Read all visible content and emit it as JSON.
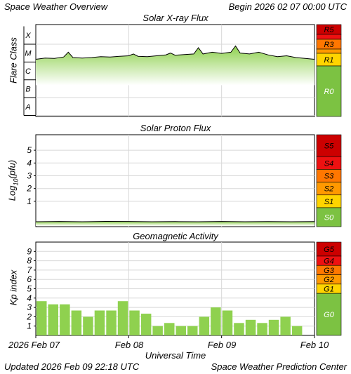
{
  "header": {
    "title": "Space Weather Overview",
    "begin": "Begin 2026 02 07 00:00 UTC"
  },
  "footer": {
    "updated": "Updated 2026 Feb 09 22:18 UTC",
    "center": "Space Weather Prediction Center",
    "xaxis_title": "Universal Time"
  },
  "x_axis": {
    "ticks": [
      "2026 Feb 07",
      "Feb 08",
      "Feb 09",
      "Feb 10"
    ]
  },
  "colors": {
    "fill_green": "#8fd14f",
    "line": "#000000",
    "grid": "#d8d8d8",
    "scale_green": "#7cc242",
    "level_yellow": "#ffd400",
    "level_orange": "#ff9900",
    "level_darkorange": "#ff7700",
    "level_red": "#ee1111",
    "level_darkred": "#cc0000"
  },
  "chart_data": [
    {
      "type": "line",
      "title": "Solar X-ray Flux",
      "ylabel": "Flare Class",
      "y_ticks": [
        "X",
        "M",
        "C",
        "B",
        "A"
      ],
      "scale_labels": [
        "R5",
        "R3",
        "R1",
        "R0"
      ],
      "x_units": "days since 2026 Feb 07 00:00 UTC",
      "points": [
        [
          0.0,
          3.65
        ],
        [
          0.1,
          3.72
        ],
        [
          0.2,
          3.7
        ],
        [
          0.3,
          3.78
        ],
        [
          0.35,
          4.05
        ],
        [
          0.4,
          3.75
        ],
        [
          0.5,
          3.72
        ],
        [
          0.6,
          3.75
        ],
        [
          0.7,
          3.8
        ],
        [
          0.8,
          3.78
        ],
        [
          0.9,
          3.82
        ],
        [
          1.0,
          3.85
        ],
        [
          1.05,
          3.95
        ],
        [
          1.1,
          3.82
        ],
        [
          1.2,
          3.8
        ],
        [
          1.3,
          3.85
        ],
        [
          1.4,
          3.9
        ],
        [
          1.45,
          4.0
        ],
        [
          1.5,
          3.88
        ],
        [
          1.6,
          3.92
        ],
        [
          1.7,
          3.95
        ],
        [
          1.75,
          4.3
        ],
        [
          1.8,
          3.95
        ],
        [
          1.9,
          4.05
        ],
        [
          2.0,
          3.98
        ],
        [
          2.1,
          4.05
        ],
        [
          2.15,
          4.4
        ],
        [
          2.2,
          4.0
        ],
        [
          2.3,
          3.95
        ],
        [
          2.4,
          4.05
        ],
        [
          2.5,
          3.9
        ],
        [
          2.6,
          3.8
        ],
        [
          2.7,
          3.85
        ],
        [
          2.8,
          3.75
        ],
        [
          2.9,
          3.7
        ],
        [
          3.0,
          3.65
        ]
      ]
    },
    {
      "type": "line",
      "title": "Solar Proton Flux",
      "ylabel": "Log10(pfu)",
      "y_ticks": [
        5,
        4,
        3,
        2,
        1
      ],
      "scale_labels": [
        "S5",
        "S4",
        "S3",
        "S2",
        "S1",
        "S0"
      ],
      "x_units": "days since 2026 Feb 07 00:00 UTC",
      "points": [
        [
          0.0,
          -0.6
        ],
        [
          0.25,
          -0.58
        ],
        [
          0.5,
          -0.6
        ],
        [
          0.75,
          -0.57
        ],
        [
          1.0,
          -0.58
        ],
        [
          1.25,
          -0.6
        ],
        [
          1.5,
          -0.59
        ],
        [
          1.75,
          -0.6
        ],
        [
          2.0,
          -0.58
        ],
        [
          2.25,
          -0.6
        ],
        [
          2.5,
          -0.59
        ],
        [
          2.75,
          -0.6
        ],
        [
          3.0,
          -0.59
        ]
      ]
    },
    {
      "type": "bar",
      "title": "Geomagnetic Activity",
      "ylabel": "Kp index",
      "y_ticks": [
        9,
        8,
        7,
        6,
        5,
        4,
        3,
        2,
        1
      ],
      "scale_labels": [
        "G5",
        "G4",
        "G3",
        "G2",
        "G1",
        "G0"
      ],
      "ylim": [
        0,
        10
      ],
      "bar_interval_hours": 3,
      "values": [
        3.67,
        3.33,
        3.33,
        2.67,
        2.0,
        2.67,
        2.67,
        3.67,
        2.67,
        2.33,
        1.0,
        1.33,
        1.0,
        1.0,
        2.0,
        3.0,
        2.67,
        1.33,
        1.67,
        1.33,
        1.67,
        2.0,
        1.0
      ]
    }
  ]
}
